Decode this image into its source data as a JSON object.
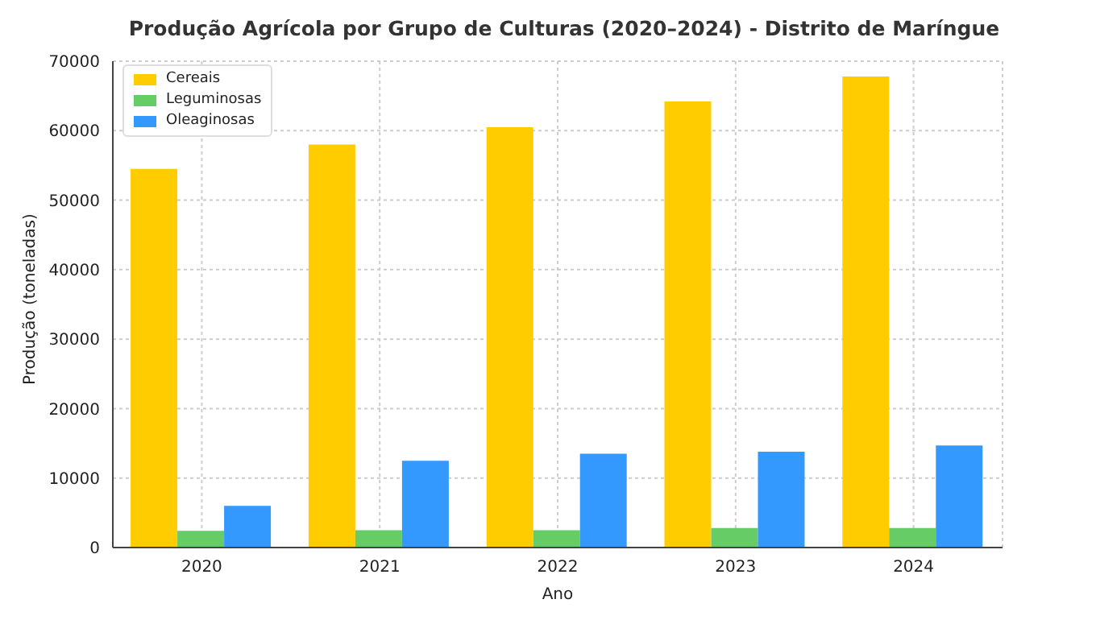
{
  "chart_data": {
    "type": "bar",
    "title": "Produção Agrícola por Grupo de Culturas (2020–2024) - Distrito de Maríngue",
    "xlabel": "Ano",
    "ylabel": "Produção (toneladas)",
    "categories": [
      "2020",
      "2021",
      "2022",
      "2023",
      "2024"
    ],
    "series": [
      {
        "name": "Cereais",
        "color": "#ffcc00",
        "values": [
          54500,
          58000,
          60500,
          64200,
          67800
        ]
      },
      {
        "name": "Leguminosas",
        "color": "#66cc66",
        "values": [
          2400,
          2500,
          2500,
          2800,
          2800
        ]
      },
      {
        "name": "Oleaginosas",
        "color": "#3399ff",
        "values": [
          6000,
          12500,
          13500,
          13800,
          14700
        ]
      }
    ],
    "ylim": [
      0,
      70000
    ],
    "yticks": [
      0,
      10000,
      20000,
      30000,
      40000,
      50000,
      60000,
      70000
    ],
    "grid": true,
    "legend": "top left"
  }
}
